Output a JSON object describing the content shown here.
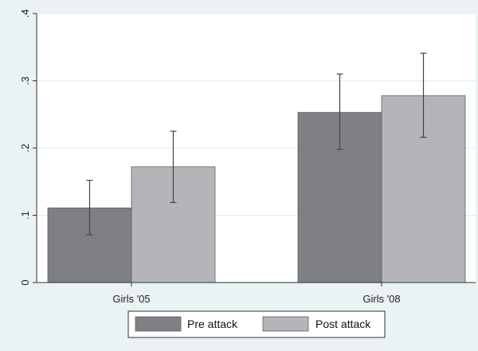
{
  "chart_data": {
    "type": "bar",
    "categories": [
      "Girls '05",
      "Girls '08"
    ],
    "series": [
      {
        "name": "Pre attack",
        "color": "#7f8085",
        "values": [
          0.111,
          0.253
        ],
        "ci_low": [
          0.071,
          0.198
        ],
        "ci_high": [
          0.152,
          0.31
        ]
      },
      {
        "name": "Post attack",
        "color": "#b5b5b9",
        "values": [
          0.172,
          0.278
        ],
        "ci_low": [
          0.119,
          0.216
        ],
        "ci_high": [
          0.225,
          0.341
        ]
      }
    ],
    "title": "",
    "xlabel": "",
    "ylabel": "",
    "ylim": [
      0,
      0.4
    ],
    "yticks": [
      0,
      0.1,
      0.2,
      0.3,
      0.4
    ],
    "ytick_labels": [
      "0",
      ".1",
      ".2",
      ".3",
      ".4"
    ],
    "grid": true,
    "legend": "bottom-center",
    "colors": {
      "background": "#eaf2f3",
      "plot_background": "#ffffff",
      "grid": "#e3ebeb",
      "axis": "#333333",
      "error_bar": "#444444",
      "bar_edge": "#5e5f63"
    }
  }
}
